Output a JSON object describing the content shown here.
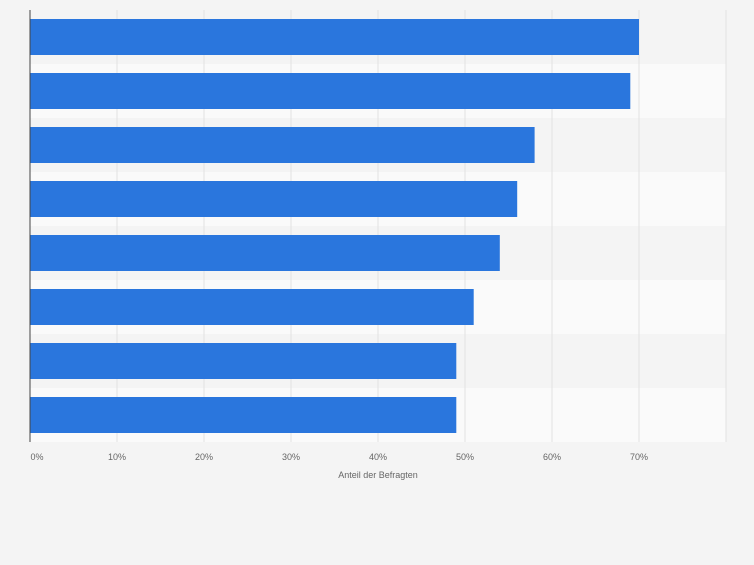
{
  "chart_data": {
    "type": "bar",
    "orientation": "horizontal",
    "categories": [
      "",
      "",
      "",
      "",
      "",
      "",
      "",
      ""
    ],
    "values": [
      70,
      69,
      58,
      56,
      54,
      51,
      49,
      49
    ],
    "unit": "%",
    "xlabel": "Anteil der Befragten",
    "ylabel": "",
    "xlim": [
      0,
      80
    ],
    "ticks": [
      0,
      10,
      20,
      30,
      40,
      50,
      60,
      70
    ],
    "tick_labels": [
      "0%",
      "10%",
      "20%",
      "30%",
      "40%",
      "50%",
      "60%",
      "70%"
    ],
    "grid": true,
    "legend": "none",
    "colors": {
      "bar": "#2a76dd",
      "background": "#f4f4f4",
      "band_light": "#fafafa",
      "band_dark": "#f4f4f4",
      "grid": "#e2e2e2",
      "axis": "#444444",
      "tick_text": "#666666"
    }
  }
}
